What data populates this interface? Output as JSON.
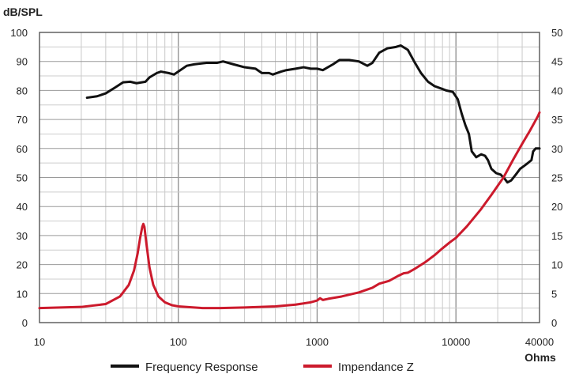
{
  "chart_data": {
    "type": "line",
    "y_label": "dB/SPL",
    "x_unit_label": "Ohms",
    "x_scale": "log",
    "x_range": [
      10,
      40000
    ],
    "y_range": [
      0,
      100
    ],
    "y2_range": [
      0,
      50
    ],
    "grid": true,
    "legend_position": "bottom-center",
    "x_tick_labels": [
      {
        "value": 10,
        "label": "10"
      },
      {
        "value": 100,
        "label": "100"
      },
      {
        "value": 1000,
        "label": "1000"
      },
      {
        "value": 10000,
        "label": "10000"
      },
      {
        "value": 40000,
        "label": "40000"
      }
    ],
    "y_tick_labels": [
      "0",
      "10",
      "20",
      "30",
      "40",
      "50",
      "60",
      "70",
      "80",
      "90",
      "100"
    ],
    "y2_tick_labels": [
      "0",
      "5",
      "10",
      "15",
      "20",
      "25",
      "30",
      "35",
      "40",
      "45",
      "50"
    ],
    "series": [
      {
        "name": "Frequency Response",
        "color": "#111111",
        "axis": "left",
        "points": [
          [
            22,
            77.5
          ],
          [
            26,
            78
          ],
          [
            30,
            79
          ],
          [
            35,
            81
          ],
          [
            40,
            82.8
          ],
          [
            45,
            83
          ],
          [
            50,
            82.5
          ],
          [
            58,
            83
          ],
          [
            62,
            84.5
          ],
          [
            70,
            86
          ],
          [
            75,
            86.5
          ],
          [
            85,
            86
          ],
          [
            93,
            85.5
          ],
          [
            100,
            86.5
          ],
          [
            115,
            88.5
          ],
          [
            130,
            89
          ],
          [
            160,
            89.5
          ],
          [
            190,
            89.5
          ],
          [
            210,
            90
          ],
          [
            250,
            89
          ],
          [
            300,
            88
          ],
          [
            360,
            87.5
          ],
          [
            400,
            86
          ],
          [
            450,
            86
          ],
          [
            480,
            85.5
          ],
          [
            550,
            86.5
          ],
          [
            600,
            87
          ],
          [
            700,
            87.5
          ],
          [
            800,
            88
          ],
          [
            900,
            87.5
          ],
          [
            1000,
            87.5
          ],
          [
            1100,
            87
          ],
          [
            1300,
            89
          ],
          [
            1450,
            90.5
          ],
          [
            1700,
            90.5
          ],
          [
            2000,
            90
          ],
          [
            2300,
            88.5
          ],
          [
            2500,
            89.5
          ],
          [
            2800,
            93
          ],
          [
            3200,
            94.5
          ],
          [
            3700,
            95
          ],
          [
            4000,
            95.5
          ],
          [
            4500,
            94
          ],
          [
            5000,
            90
          ],
          [
            5600,
            86
          ],
          [
            6300,
            83
          ],
          [
            7000,
            81.5
          ],
          [
            8000,
            80.5
          ],
          [
            8500,
            80
          ],
          [
            9500,
            79.5
          ],
          [
            10300,
            77
          ],
          [
            11000,
            72
          ],
          [
            11700,
            68
          ],
          [
            12400,
            65
          ],
          [
            13000,
            59
          ],
          [
            14000,
            57
          ],
          [
            15200,
            58
          ],
          [
            16200,
            57.5
          ],
          [
            17000,
            56
          ],
          [
            18000,
            53
          ],
          [
            19500,
            51.5
          ],
          [
            21000,
            51
          ],
          [
            22500,
            49.5
          ],
          [
            23500,
            48.3
          ],
          [
            25000,
            49
          ],
          [
            27000,
            51
          ],
          [
            29000,
            53
          ],
          [
            31000,
            54
          ],
          [
            33000,
            55
          ],
          [
            35000,
            56
          ],
          [
            36000,
            59
          ],
          [
            37500,
            60
          ],
          [
            40000,
            60
          ]
        ]
      },
      {
        "name": "Impendance Z",
        "color": "#cc1a2c",
        "axis": "right",
        "points": [
          [
            10,
            2.5
          ],
          [
            20,
            2.7
          ],
          [
            30,
            3.2
          ],
          [
            38,
            4.5
          ],
          [
            44,
            6.5
          ],
          [
            48,
            9
          ],
          [
            51,
            12
          ],
          [
            53,
            14.5
          ],
          [
            55,
            16.5
          ],
          [
            56,
            17
          ],
          [
            57,
            16.5
          ],
          [
            59,
            13.5
          ],
          [
            62,
            9.5
          ],
          [
            66,
            6.5
          ],
          [
            72,
            4.5
          ],
          [
            80,
            3.5
          ],
          [
            90,
            3.0
          ],
          [
            100,
            2.8
          ],
          [
            150,
            2.5
          ],
          [
            200,
            2.5
          ],
          [
            300,
            2.6
          ],
          [
            500,
            2.8
          ],
          [
            700,
            3.1
          ],
          [
            900,
            3.5
          ],
          [
            1000,
            3.8
          ],
          [
            1050,
            4.2
          ],
          [
            1100,
            3.9
          ],
          [
            1200,
            4.1
          ],
          [
            1500,
            4.5
          ],
          [
            2000,
            5.2
          ],
          [
            2500,
            6
          ],
          [
            2800,
            6.7
          ],
          [
            3000,
            6.9
          ],
          [
            3300,
            7.2
          ],
          [
            3800,
            8
          ],
          [
            4200,
            8.5
          ],
          [
            4500,
            8.6
          ],
          [
            5000,
            9.2
          ],
          [
            6000,
            10.4
          ],
          [
            7000,
            11.6
          ],
          [
            8000,
            12.8
          ],
          [
            9000,
            13.8
          ],
          [
            10000,
            14.6
          ],
          [
            12000,
            16.6
          ],
          [
            15000,
            19.4
          ],
          [
            18000,
            22
          ],
          [
            22000,
            25
          ],
          [
            26000,
            28.2
          ],
          [
            30000,
            30.8
          ],
          [
            34000,
            33
          ],
          [
            37000,
            34.6
          ],
          [
            39000,
            35.6
          ],
          [
            40000,
            36.2
          ]
        ]
      }
    ]
  }
}
